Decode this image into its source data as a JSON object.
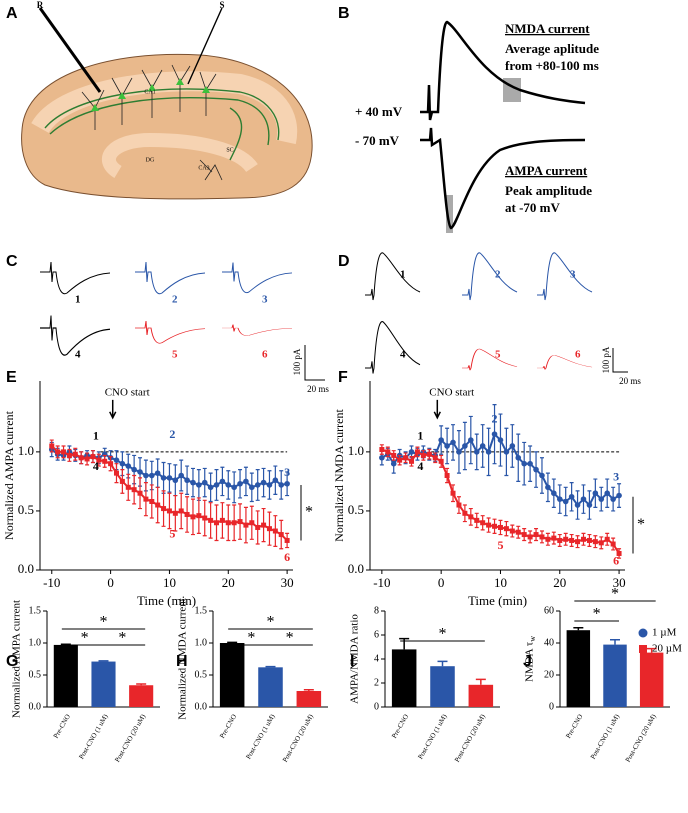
{
  "panel_labels": [
    "A",
    "B",
    "C",
    "D",
    "E",
    "F",
    "G",
    "H",
    "I",
    "J"
  ],
  "diagram": {
    "electrodes": [
      "R",
      "S"
    ],
    "regions": [
      "CA1",
      "DG",
      "CA3"
    ],
    "pathway": "SC"
  },
  "panel_b": {
    "nmda_title": "NMDA current",
    "nmda_lines": [
      "Average aplitude",
      "from +80-100 ms"
    ],
    "holding": [
      "+ 40 mV",
      "- 70 mV"
    ],
    "ampa_title": "AMPA current",
    "ampa_lines": [
      "Peak amplitude",
      "at -70 mV"
    ]
  },
  "panel_c": {
    "trace_labels": [
      "1",
      "2",
      "3",
      "4",
      "5",
      "6"
    ],
    "scale_y": "100 pA",
    "scale_x": "20 ms"
  },
  "panel_d": {
    "trace_labels": [
      "1",
      "2",
      "3",
      "4",
      "5",
      "6"
    ],
    "scale_y": "100 pA",
    "scale_x": "20 ms"
  },
  "chart_data": [
    {
      "type": "line",
      "ylabel": "Normalized AMPA current",
      "xlabel": "Time (min)",
      "x": [
        -10,
        -9,
        -8,
        -7,
        -6,
        -5,
        -4,
        -3,
        -2,
        -1,
        0,
        1,
        2,
        3,
        4,
        5,
        6,
        7,
        8,
        9,
        10,
        11,
        12,
        13,
        14,
        15,
        16,
        17,
        18,
        19,
        20,
        21,
        22,
        23,
        24,
        25,
        26,
        27,
        28,
        29,
        30
      ],
      "series": [
        {
          "name": "1 µM",
          "color": "#2a56a8",
          "marker": "circle",
          "values": [
            1.02,
            0.98,
            0.97,
            1.0,
            0.97,
            0.95,
            0.97,
            0.96,
            0.95,
            0.98,
            0.95,
            0.93,
            0.9,
            0.88,
            0.85,
            0.83,
            0.8,
            0.8,
            0.82,
            0.78,
            0.78,
            0.76,
            0.8,
            0.76,
            0.74,
            0.72,
            0.74,
            0.7,
            0.72,
            0.75,
            0.72,
            0.7,
            0.73,
            0.75,
            0.7,
            0.72,
            0.74,
            0.72,
            0.76,
            0.72,
            0.73
          ],
          "errors": [
            0.06,
            0.05,
            0.04,
            0.05,
            0.05,
            0.05,
            0.04,
            0.05,
            0.05,
            0.05,
            0.06,
            0.08,
            0.1,
            0.1,
            0.12,
            0.12,
            0.13,
            0.12,
            0.12,
            0.13,
            0.12,
            0.13,
            0.13,
            0.12,
            0.12,
            0.13,
            0.12,
            0.12,
            0.13,
            0.12,
            0.12,
            0.13,
            0.12,
            0.12,
            0.12,
            0.13,
            0.12,
            0.12,
            0.12,
            0.12,
            0.1
          ]
        },
        {
          "name": "20 µM",
          "color": "#e8262a",
          "marker": "square",
          "values": [
            1.05,
            1.0,
            1.0,
            0.97,
            0.98,
            0.95,
            0.94,
            0.96,
            0.93,
            0.92,
            0.9,
            0.82,
            0.75,
            0.7,
            0.68,
            0.65,
            0.6,
            0.58,
            0.55,
            0.52,
            0.5,
            0.48,
            0.5,
            0.47,
            0.45,
            0.46,
            0.44,
            0.42,
            0.4,
            0.42,
            0.4,
            0.4,
            0.41,
            0.38,
            0.4,
            0.36,
            0.38,
            0.35,
            0.33,
            0.3,
            0.25
          ],
          "errors": [
            0.05,
            0.05,
            0.05,
            0.05,
            0.05,
            0.05,
            0.05,
            0.05,
            0.05,
            0.05,
            0.06,
            0.08,
            0.1,
            0.11,
            0.12,
            0.13,
            0.14,
            0.14,
            0.15,
            0.15,
            0.15,
            0.15,
            0.15,
            0.15,
            0.15,
            0.15,
            0.15,
            0.15,
            0.15,
            0.15,
            0.15,
            0.15,
            0.15,
            0.15,
            0.14,
            0.14,
            0.14,
            0.14,
            0.13,
            0.12,
            0.06
          ]
        }
      ],
      "xlim": [
        -12,
        31
      ],
      "ylim": [
        0,
        1.6
      ],
      "xticks": [
        -10,
        0,
        10,
        20,
        30
      ],
      "yticks": [
        {
          "value": 0,
          "label": "0.0"
        },
        0.5,
        {
          "value": 1,
          "label": "1.0"
        }
      ],
      "hline": 1,
      "annotations": [
        "CNO start",
        "1",
        "2",
        "3",
        "4",
        "5",
        "6",
        "*"
      ]
    },
    {
      "type": "line",
      "ylabel": "Normalized NMDA current",
      "xlabel": "Time (min)",
      "x": [
        -10,
        -9,
        -8,
        -7,
        -6,
        -5,
        -4,
        -3,
        -2,
        -1,
        0,
        1,
        2,
        3,
        4,
        5,
        6,
        7,
        8,
        9,
        10,
        11,
        12,
        13,
        14,
        15,
        16,
        17,
        18,
        19,
        20,
        21,
        22,
        23,
        24,
        25,
        26,
        27,
        28,
        29,
        30
      ],
      "series": [
        {
          "color": "#2a56a8",
          "marker": "circle",
          "values": [
            0.95,
            0.98,
            0.9,
            0.97,
            0.95,
            1.0,
            0.98,
            1.0,
            0.98,
            0.97,
            1.1,
            1.05,
            1.08,
            1.0,
            1.05,
            1.1,
            1.0,
            1.05,
            1.0,
            1.15,
            1.1,
            1.0,
            1.05,
            0.95,
            0.9,
            0.9,
            0.85,
            0.8,
            0.7,
            0.65,
            0.6,
            0.58,
            0.62,
            0.55,
            0.6,
            0.55,
            0.65,
            0.6,
            0.65,
            0.6,
            0.63
          ],
          "errors": [
            0.06,
            0.05,
            0.08,
            0.05,
            0.05,
            0.05,
            0.05,
            0.05,
            0.05,
            0.05,
            0.12,
            0.15,
            0.15,
            0.18,
            0.2,
            0.2,
            0.15,
            0.18,
            0.2,
            0.25,
            0.22,
            0.2,
            0.18,
            0.2,
            0.18,
            0.15,
            0.15,
            0.15,
            0.12,
            0.12,
            0.12,
            0.12,
            0.12,
            0.12,
            0.12,
            0.12,
            0.12,
            0.1,
            0.12,
            0.1,
            0.1
          ]
        },
        {
          "color": "#e8262a",
          "marker": "square",
          "values": [
            1.02,
            1.0,
            0.97,
            0.93,
            0.95,
            0.92,
            1.0,
            0.97,
            0.98,
            0.95,
            0.92,
            0.8,
            0.65,
            0.55,
            0.48,
            0.45,
            0.42,
            0.4,
            0.38,
            0.37,
            0.36,
            0.35,
            0.33,
            0.32,
            0.3,
            0.28,
            0.3,
            0.28,
            0.26,
            0.27,
            0.25,
            0.26,
            0.25,
            0.24,
            0.26,
            0.25,
            0.24,
            0.23,
            0.26,
            0.22,
            0.14
          ],
          "errors": [
            0.04,
            0.04,
            0.04,
            0.04,
            0.04,
            0.04,
            0.04,
            0.04,
            0.04,
            0.04,
            0.05,
            0.06,
            0.07,
            0.07,
            0.07,
            0.07,
            0.06,
            0.06,
            0.06,
            0.06,
            0.06,
            0.06,
            0.05,
            0.05,
            0.05,
            0.05,
            0.05,
            0.05,
            0.05,
            0.05,
            0.05,
            0.05,
            0.05,
            0.05,
            0.05,
            0.05,
            0.05,
            0.05,
            0.05,
            0.05,
            0.04
          ]
        }
      ],
      "xlim": [
        -12,
        31
      ],
      "ylim": [
        0,
        1.6
      ],
      "xticks": [
        -10,
        0,
        10,
        20,
        30
      ],
      "yticks": [
        {
          "value": 0,
          "label": "0.0"
        },
        0.5,
        {
          "value": 1,
          "label": "1.0"
        }
      ],
      "hline": 1,
      "annotations": [
        "CNO start",
        "1",
        "2",
        "3",
        "4",
        "5",
        "6",
        "*"
      ]
    },
    {
      "type": "bar",
      "ylabel": "Normalized AMPA current",
      "categories": [
        "Pre-CNO",
        "Post-CNO (1 uM)",
        "Post-CNO (20 uM)"
      ],
      "values": [
        0.97,
        0.71,
        0.34
      ],
      "errors": [
        0.01,
        0.01,
        0.02
      ],
      "colors": [
        "#000000",
        "#2a56a8",
        "#e8262a"
      ],
      "ylim": [
        0,
        1.5
      ],
      "yticks": [
        {
          "value": 0,
          "label": "0.0"
        },
        0.5,
        {
          "value": 1,
          "label": "1.0"
        },
        1.5
      ],
      "significance": [
        {
          "pair": [
            0,
            1
          ],
          "label": "*"
        },
        {
          "pair": [
            1,
            2
          ],
          "label": "*"
        },
        {
          "pair": [
            0,
            2
          ],
          "label": "*"
        }
      ]
    },
    {
      "type": "bar",
      "ylabel": "Normalized NMDA current",
      "categories": [
        "Pre-CNO",
        "Post-CNO (1 uM)",
        "Post-CNO (20 uM)"
      ],
      "values": [
        1.0,
        0.62,
        0.25
      ],
      "errors": [
        0.01,
        0.01,
        0.02
      ],
      "colors": [
        "#000000",
        "#2a56a8",
        "#e8262a"
      ],
      "ylim": [
        0,
        1.5
      ],
      "yticks": [
        {
          "value": 0,
          "label": "0.0"
        },
        0.5,
        {
          "value": 1,
          "label": "1.0"
        },
        1.5
      ],
      "significance": [
        {
          "pair": [
            0,
            1
          ],
          "label": "*"
        },
        {
          "pair": [
            1,
            2
          ],
          "label": "*"
        },
        {
          "pair": [
            0,
            2
          ],
          "label": "*"
        }
      ]
    },
    {
      "type": "bar",
      "ylabel": "AMPA/NMDA ratio",
      "categories": [
        "Pre-CNO",
        "Post-CNO (1 uM)",
        "Post-CNO (20 uM)"
      ],
      "values": [
        4.8,
        3.4,
        1.85
      ],
      "errors": [
        0.9,
        0.4,
        0.45
      ],
      "colors": [
        "#000000",
        "#2a56a8",
        "#e8262a"
      ],
      "ylim": [
        0,
        8
      ],
      "yticks": [
        0,
        2,
        4,
        6,
        8
      ],
      "significance": [
        {
          "pair": [
            0,
            2
          ],
          "label": "*"
        }
      ]
    },
    {
      "type": "bar",
      "ylabel": "NMDA τ",
      "ylabel_sub": "w",
      "categories": [
        "Pre-CNO",
        "Post-CNO (1 uM)",
        "Post-CNO (20 uM)"
      ],
      "values": [
        48,
        39,
        34
      ],
      "errors": [
        1.5,
        3,
        2.5
      ],
      "colors": [
        "#000000",
        "#2a56a8",
        "#e8262a"
      ],
      "ylim": [
        0,
        60
      ],
      "yticks": [
        0,
        20,
        40,
        60
      ],
      "significance": [
        {
          "pair": [
            0,
            1
          ],
          "label": "*"
        },
        {
          "pair": [
            0,
            2
          ],
          "label": "*"
        }
      ]
    }
  ]
}
